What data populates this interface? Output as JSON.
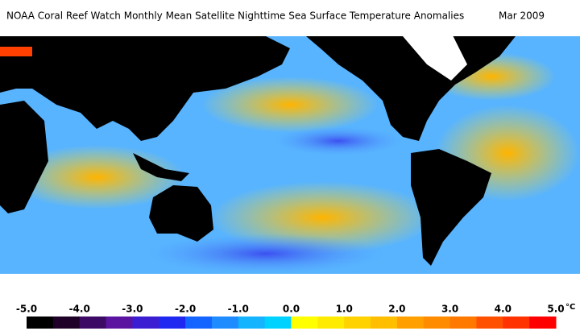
{
  "title": "NOAA Coral Reef Watch Monthly Mean Satellite Nighttime Sea Surface Temperature Anomalies",
  "date": "Mar 2009",
  "colorbar": {
    "unit": "°C",
    "range": [
      -5,
      5
    ],
    "ticks": [
      {
        "value": -5,
        "label": "-5.0"
      },
      {
        "value": -4,
        "label": "-4.0"
      },
      {
        "value": -3,
        "label": "-3.0"
      },
      {
        "value": -2,
        "label": "-2.0"
      },
      {
        "value": -1,
        "label": "-1.0"
      },
      {
        "value": 0,
        "label": "0.0"
      },
      {
        "value": 1,
        "label": "1.0"
      },
      {
        "value": 2,
        "label": "2.0"
      },
      {
        "value": 3,
        "label": "3.0"
      },
      {
        "value": 4,
        "label": "4.0"
      },
      {
        "value": 5,
        "label": "5.0"
      }
    ],
    "colors": [
      "#000000",
      "#1e0028",
      "#3c0a64",
      "#5a14a0",
      "#3c1ed2",
      "#1e28f0",
      "#1464ff",
      "#1e8cff",
      "#14b4ff",
      "#00d2ff",
      "#ffff00",
      "#ffeb00",
      "#ffd200",
      "#ffbe00",
      "#ffa000",
      "#ff8c00",
      "#ff7800",
      "#ff5000",
      "#ff3200",
      "#ff0000"
    ]
  }
}
